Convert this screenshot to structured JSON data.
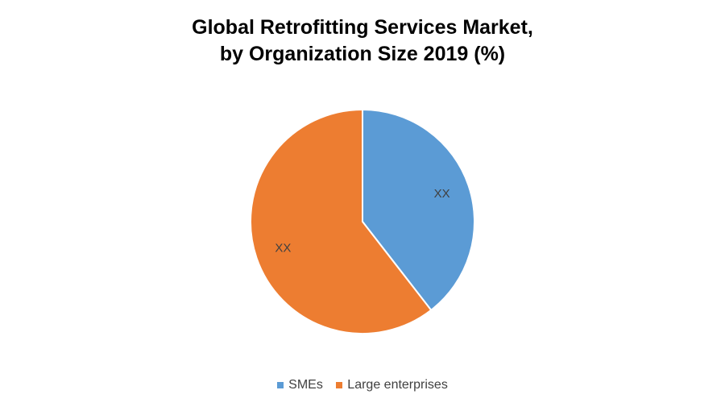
{
  "chart_data": {
    "type": "pie",
    "title_line1": "Global Retrofitting Services Market,",
    "title_line2": "by Organization Size 2019 (%)",
    "slices": [
      {
        "name": "SMEs",
        "value": 39.5,
        "label": "XX",
        "color": "#5B9BD5"
      },
      {
        "name": "Large enterprises",
        "value": 60.5,
        "label": "XX",
        "color": "#ED7D31"
      }
    ],
    "legend_position": "bottom"
  }
}
